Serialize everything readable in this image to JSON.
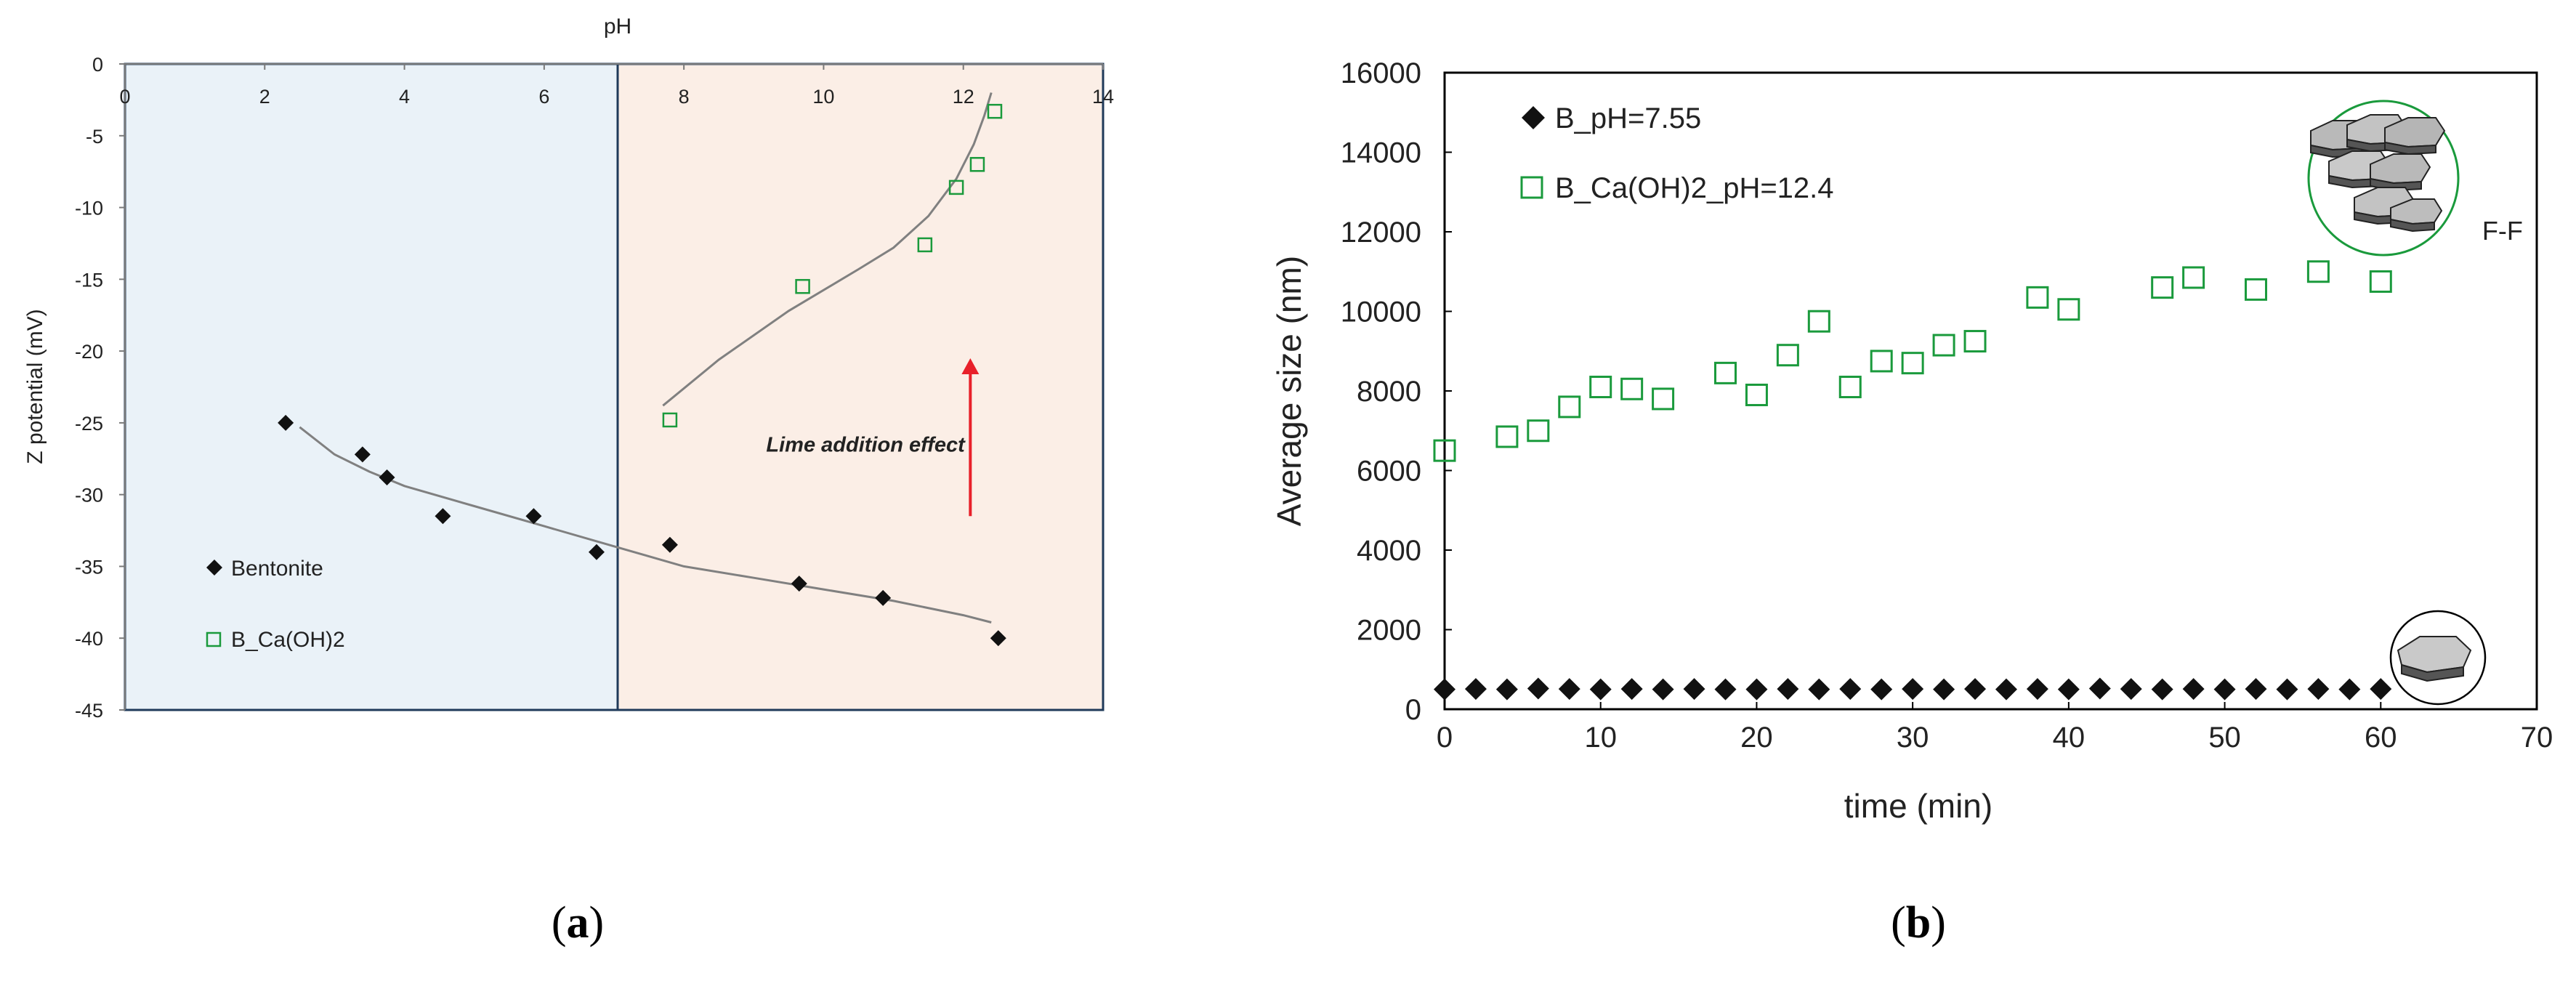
{
  "colors": {
    "black_series": "#111111",
    "green_series": "#1a9a3c",
    "trend": "#808080",
    "arrow": "#e8202a",
    "annotation": "#e8202a",
    "acid_band": "#eaf2f8",
    "alkaline_band": "#fbeee6",
    "band_border": "#1f3a5a"
  },
  "chart_data": [
    {
      "type": "scatter",
      "panel_label": "(a)",
      "panel_letter": "a",
      "title": "",
      "xlabel": "pH",
      "ylabel": "Z potential (mV)",
      "xlim": [
        0,
        14
      ],
      "ylim": [
        -45,
        0
      ],
      "x_ticks": [
        0,
        2,
        4,
        6,
        8,
        10,
        12,
        14
      ],
      "y_ticks": [
        0,
        -5,
        -10,
        -15,
        -20,
        -25,
        -30,
        -35,
        -40,
        -45
      ],
      "x_tick_labels": [
        "0",
        "2",
        "4",
        "6",
        "8",
        "10",
        "12",
        "14"
      ],
      "y_tick_labels": [
        "0",
        "-5",
        "-10",
        "-15",
        "-20",
        "-25",
        "-30",
        "-35",
        "-40",
        "-45"
      ],
      "band_split_x": 7,
      "series": [
        {
          "name": "Bentonite",
          "marker": "diamond-filled",
          "x": [
            2.3,
            3.4,
            3.75,
            4.55,
            5.85,
            6.75,
            7.8,
            9.65,
            10.85,
            12.5
          ],
          "y": [
            -25.0,
            -27.2,
            -28.8,
            -31.5,
            -31.5,
            -34.0,
            -33.5,
            -36.2,
            -37.2,
            -40.0
          ]
        },
        {
          "name": "B_Ca(OH)2",
          "marker": "square-open",
          "x": [
            7.8,
            9.7,
            11.45,
            11.9,
            12.2,
            12.45
          ],
          "y": [
            -24.8,
            -15.5,
            -12.6,
            -8.6,
            -7.0,
            -3.3
          ]
        }
      ],
      "trendlines": [
        {
          "name": "Bentonite trend",
          "x": [
            2.5,
            3.0,
            3.5,
            4.0,
            5.0,
            6.0,
            7.0,
            8.0,
            9.0,
            10.0,
            11.0,
            12.0,
            12.4
          ],
          "y": [
            -25.3,
            -27.2,
            -28.4,
            -29.4,
            -30.8,
            -32.2,
            -33.6,
            -35.0,
            -35.8,
            -36.6,
            -37.4,
            -38.4,
            -38.9
          ]
        },
        {
          "name": "B_Ca(OH)2 trend",
          "x": [
            7.7,
            8.5,
            9.5,
            10.5,
            11.0,
            11.5,
            11.9,
            12.15,
            12.3,
            12.4
          ],
          "y": [
            -23.8,
            -20.6,
            -17.2,
            -14.3,
            -12.8,
            -10.6,
            -8.0,
            -5.6,
            -3.6,
            -2.0
          ]
        }
      ],
      "annotations": [
        {
          "text": "Lime addition effect",
          "x": 10.6,
          "y": -27.0
        }
      ],
      "arrow": {
        "x": 12.1,
        "y_from": -31.5,
        "y_to": -20.5
      },
      "legend": [
        "Bentonite",
        "B_Ca(OH)2"
      ],
      "legend_placement": "bottom-left",
      "grid": false
    },
    {
      "type": "scatter",
      "panel_label": "(b)",
      "panel_letter": "b",
      "title": "",
      "xlabel": "time (min)",
      "ylabel": "Average size (nm)",
      "xlim": [
        0,
        70
      ],
      "ylim": [
        0,
        16000
      ],
      "x_ticks": [
        0,
        10,
        20,
        30,
        40,
        50,
        60,
        70
      ],
      "y_ticks": [
        0,
        2000,
        4000,
        6000,
        8000,
        10000,
        12000,
        14000,
        16000
      ],
      "x_tick_labels": [
        "0",
        "10",
        "20",
        "30",
        "40",
        "50",
        "60",
        "70"
      ],
      "y_tick_labels": [
        "0",
        "2000",
        "4000",
        "6000",
        "8000",
        "10000",
        "12000",
        "14000",
        "16000"
      ],
      "series": [
        {
          "name": "B_pH=7.55",
          "marker": "diamond-filled",
          "x": [
            0,
            2,
            4,
            6,
            8,
            10,
            12,
            14,
            16,
            18,
            20,
            22,
            24,
            26,
            28,
            30,
            32,
            34,
            36,
            38,
            40,
            42,
            44,
            46,
            48,
            50,
            52,
            54,
            56,
            58,
            60
          ],
          "y": [
            500,
            510,
            500,
            520,
            510,
            500,
            510,
            500,
            510,
            500,
            500,
            510,
            500,
            510,
            500,
            510,
            500,
            510,
            500,
            510,
            500,
            520,
            510,
            500,
            510,
            500,
            510,
            500,
            510,
            500,
            510
          ]
        },
        {
          "name": "B_Ca(OH)2_pH=12.4",
          "marker": "square-open",
          "x": [
            0,
            4,
            6,
            8,
            10,
            12,
            14,
            18,
            20,
            22,
            24,
            26,
            28,
            30,
            32,
            34,
            38,
            40,
            46,
            48,
            52,
            56,
            60
          ],
          "y": [
            6500,
            6850,
            7000,
            7600,
            8100,
            8050,
            7800,
            8450,
            7900,
            8900,
            9750,
            8100,
            8750,
            8700,
            9150,
            9250,
            10350,
            10050,
            10600,
            10850,
            10550,
            11000,
            10750
          ]
        }
      ],
      "annotations": [
        {
          "text": "F-F",
          "x": 66.5,
          "y": 11800
        }
      ],
      "legend": [
        "B_pH=7.55",
        "B_Ca(OH)2_pH=12.4"
      ],
      "legend_placement": "top-left",
      "grid": false
    }
  ]
}
